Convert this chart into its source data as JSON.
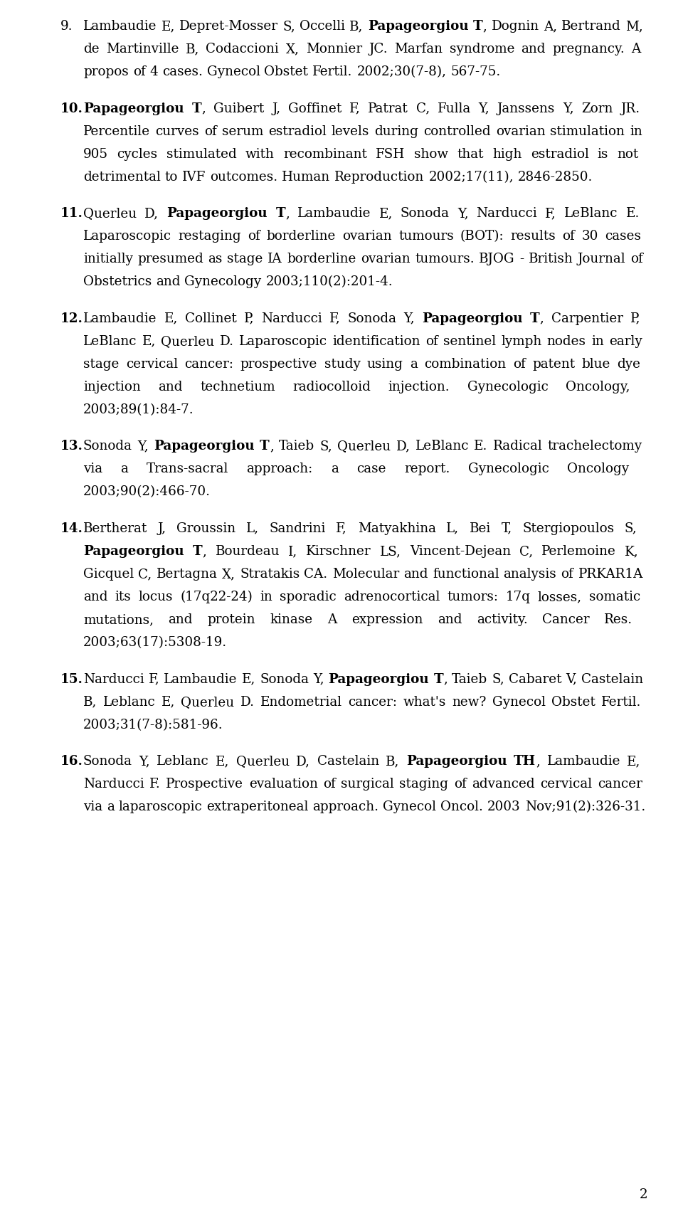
{
  "page_number": "2",
  "background_color": "#ffffff",
  "text_color": "#000000",
  "entries": [
    {
      "number": "9.",
      "number_bold": false,
      "segments": [
        {
          "text": "Lambaudie E, Depret-Mosser S, Occelli B, ",
          "bold": false
        },
        {
          "text": "Papageorgiou T",
          "bold": true
        },
        {
          "text": ", Dognin A, Bertrand M, de Martinville B, Codaccioni X, Monnier JC. Marfan syndrome and pregnancy. A propos of 4 cases. Gynecol Obstet Fertil. 2002;30(7-8), 567-75.",
          "bold": false
        }
      ]
    },
    {
      "number": "10.",
      "number_bold": true,
      "segments": [
        {
          "text": "Papageorgiou T",
          "bold": true
        },
        {
          "text": ", Guibert J, Goffinet F, Patrat C, Fulla Y, Janssens Y, Zorn JR. Percentile curves of serum estradiol levels during controlled ovarian stimulation in 905 cycles stimulated with recombinant FSH show that high estradiol is not detrimental to IVF outcomes. Human Reproduction 2002;17(11), 2846-2850.",
          "bold": false
        }
      ]
    },
    {
      "number": "11.",
      "number_bold": true,
      "segments": [
        {
          "text": "Querleu D, ",
          "bold": false
        },
        {
          "text": "Papageorgiou T",
          "bold": true
        },
        {
          "text": ", Lambaudie E, Sonoda Y, Narducci F, LeBlanc E. Laparoscopic restaging of borderline ovarian tumours (BOT): results of 30 cases initially presumed as stage IA borderline ovarian tumours. BJOG - British Journal of Obstetrics and Gynecology 2003;110(2):201-4.",
          "bold": false
        }
      ]
    },
    {
      "number": "12.",
      "number_bold": true,
      "segments": [
        {
          "text": "Lambaudie E, Collinet P, Narducci F, Sonoda Y, ",
          "bold": false
        },
        {
          "text": "Papageorgiou T",
          "bold": true
        },
        {
          "text": ", Carpentier P, LeBlanc E, Querleu D. Laparoscopic identification of sentinel lymph nodes in early stage cervical cancer: prospective study using a combination of patent blue dye injection and technetium radiocolloid injection. Gynecologic Oncology, 2003;89(1):84-7.",
          "bold": false
        }
      ]
    },
    {
      "number": "13.",
      "number_bold": true,
      "segments": [
        {
          "text": "Sonoda Y, ",
          "bold": false
        },
        {
          "text": "Papageorgiou T",
          "bold": true
        },
        {
          "text": ", Taieb S, Querleu D, LeBlanc E. Radical trachelectomy via a Trans-sacral approach: a case report. Gynecologic Oncology 2003;90(2):466-70.",
          "bold": false
        }
      ]
    },
    {
      "number": "14.",
      "number_bold": true,
      "segments": [
        {
          "text": "Bertherat J, Groussin L, Sandrini F, Matyakhina L, Bei T, Stergiopoulos S, ",
          "bold": false
        },
        {
          "text": "Papageorgiou T",
          "bold": true
        },
        {
          "text": ", Bourdeau I, Kirschner LS, Vincent-Dejean C, Perlemoine K, Gicquel C, Bertagna X, Stratakis CA. Molecular and functional analysis of PRKAR1A and its locus (17q22-24) in sporadic adrenocortical tumors: 17q losses, somatic mutations, and protein kinase A expression and activity. Cancer Res. 2003;63(17):5308-19.",
          "bold": false
        }
      ]
    },
    {
      "number": "15.",
      "number_bold": true,
      "segments": [
        {
          "text": "Narducci F, Lambaudie E, Sonoda Y, ",
          "bold": false
        },
        {
          "text": "Papageorgiou T",
          "bold": true
        },
        {
          "text": ", Taieb S, Cabaret V, Castelain B, Leblanc E, Querleu D. Endometrial cancer: what's new? Gynecol Obstet Fertil. 2003;31(7-8):581-96.",
          "bold": false
        }
      ]
    },
    {
      "number": "16.",
      "number_bold": true,
      "segments": [
        {
          "text": "Sonoda Y, Leblanc E, Querleu D, Castelain B, ",
          "bold": false
        },
        {
          "text": "Papageorgiou TH",
          "bold": true
        },
        {
          "text": ", Lambaudie E, Narducci F. Prospective evaluation of surgical staging of advanced cervical cancer via a laparoscopic extraperitoneal approach. Gynecol Oncol. 2003 Nov;91(2):326-31.",
          "bold": false
        }
      ]
    }
  ]
}
